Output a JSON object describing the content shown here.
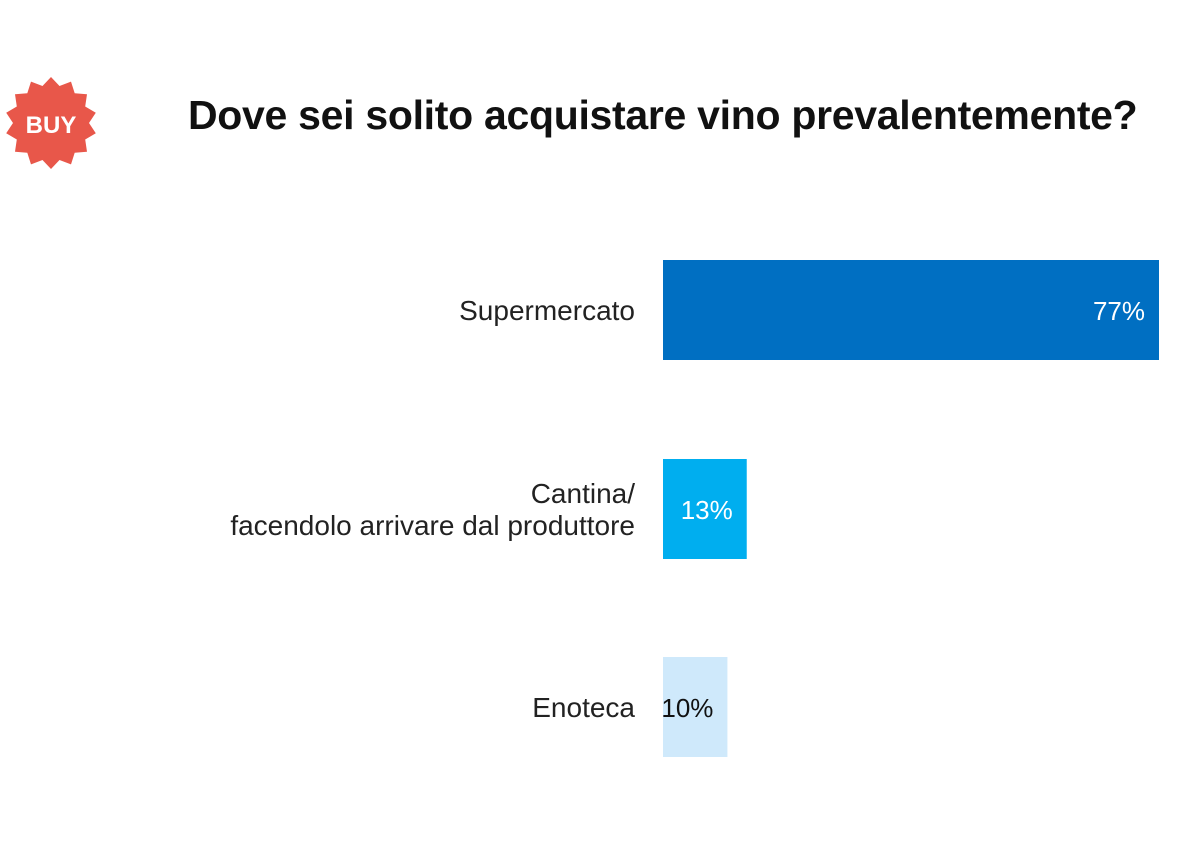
{
  "badge": {
    "text": "BUY",
    "color": "#e8574a",
    "icon": "starburst-badge-icon"
  },
  "chart_data": {
    "type": "bar",
    "orientation": "horizontal",
    "title": "Dove sei solito acquistare vino prevalentemente?",
    "categories": [
      [
        "Supermercato"
      ],
      [
        "Cantina/",
        "facendolo arrivare dal produttore"
      ],
      [
        "Enoteca"
      ]
    ],
    "values": [
      77,
      13,
      10
    ],
    "value_labels": [
      "77%",
      "13%",
      "10%"
    ],
    "colors": [
      "#006fc2",
      "#00aeef",
      "#cfe9fb"
    ],
    "label_colors": [
      "#ffffff",
      "#ffffff",
      "#111111"
    ],
    "xlim": [
      0,
      77
    ],
    "grid": false,
    "legend": "none"
  }
}
